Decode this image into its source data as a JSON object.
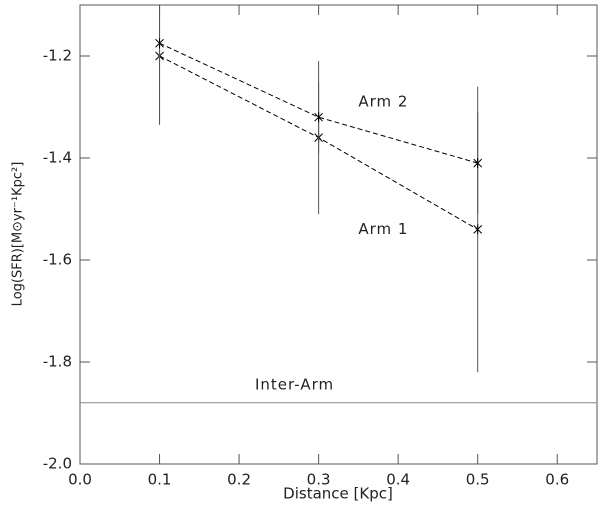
{
  "chart_data": {
    "type": "line",
    "xlabel": "Distance [Kpc]",
    "ylabel": "Log(SFR)[M⊙yr⁻¹Kpc²]",
    "x": [
      0.1,
      0.3,
      0.5
    ],
    "series": [
      {
        "name": "Arm 1",
        "color": "#000000",
        "values": [
          -1.2,
          -1.36,
          -1.54
        ],
        "errors": [
          0.13,
          0.15,
          0.28
        ]
      },
      {
        "name": "Arm 2",
        "color": "#000000",
        "values": [
          -1.175,
          -1.32,
          -1.41
        ],
        "errors": [
          0.16,
          0.07,
          0.1
        ]
      }
    ],
    "reference_line": {
      "value": -1.88,
      "label": "Inter-Arm",
      "color": "#888888"
    },
    "xlim": [
      0,
      0.65
    ],
    "ylim": [
      -2.0,
      -1.1
    ],
    "xticks": [
      {
        "value": 0,
        "label": "0.0"
      },
      0.1,
      0.2,
      0.3,
      0.4,
      0.5,
      0.6
    ],
    "yticks": [
      {
        "value": -2.0,
        "label": "-2.0"
      },
      -1.8,
      -1.6,
      -1.4,
      -1.2
    ]
  }
}
